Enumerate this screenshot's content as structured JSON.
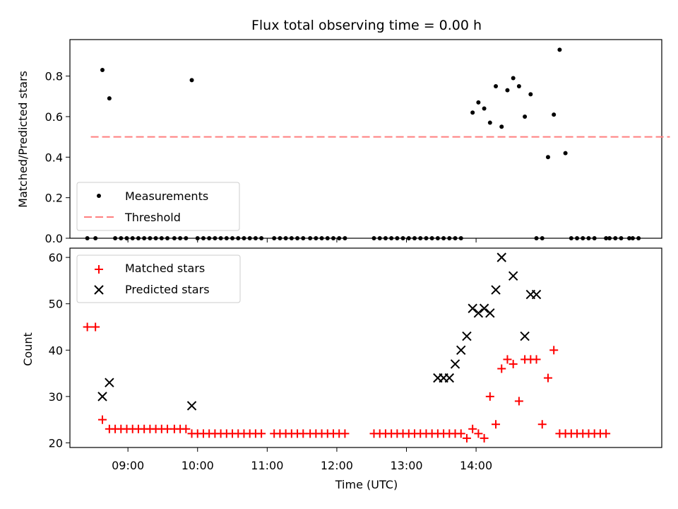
{
  "chart_data": [
    {
      "type": "scatter",
      "title": "Flux total observing time = 0.00 h",
      "xlabel": "",
      "ylabel": "Matched/Predicted stars",
      "ylim": [
        0,
        0.98
      ],
      "yticks": [
        "0.0",
        "0.2",
        "0.4",
        "0.6",
        "0.8"
      ],
      "ytick_values": [
        0,
        0.2,
        0.4,
        0.6,
        0.8
      ],
      "xlim_minutes": [
        490,
        1000
      ],
      "legend": {
        "location": "lower-left",
        "measurements_label": "Measurements",
        "threshold_label": "Threshold"
      },
      "threshold": {
        "value": 0.5,
        "x_start": 508,
        "x_end": 1007,
        "color": "#ff7f7f"
      },
      "measurements_color": "#000000",
      "series": [
        {
          "name": "Measurements",
          "x": [
            505,
            512,
            518,
            524,
            529,
            534,
            539,
            544,
            549,
            554,
            559,
            564,
            569,
            574,
            580,
            585,
            590,
            595,
            600,
            605,
            610,
            615,
            620,
            625,
            630,
            635,
            640,
            645,
            650,
            655,
            666,
            671,
            676,
            681,
            686,
            691,
            697,
            702,
            707,
            712,
            717,
            722,
            727,
            752,
            757,
            762,
            767,
            772,
            777,
            782,
            787,
            792,
            797,
            802,
            807,
            812,
            817,
            822,
            827,
            837,
            842,
            847,
            852,
            857,
            862,
            867,
            872,
            877,
            882,
            887,
            892,
            897,
            902,
            907,
            912,
            917,
            922,
            927,
            932,
            937,
            942,
            952,
            955,
            960,
            965,
            972,
            975,
            980
          ],
          "y": [
            0,
            0,
            0.83,
            0.69,
            0,
            0,
            0,
            0,
            0,
            0,
            0,
            0,
            0,
            0,
            0,
            0,
            0,
            0.78,
            0,
            0,
            0,
            0,
            0,
            0,
            0,
            0,
            0,
            0,
            0,
            0,
            0,
            0,
            0,
            0,
            0,
            0,
            0,
            0,
            0,
            0,
            0,
            0,
            0,
            0,
            0,
            0,
            0,
            0,
            0,
            0,
            0,
            0,
            0,
            0,
            0,
            0,
            0,
            0,
            0,
            0.62,
            0.67,
            0.64,
            0.57,
            0.75,
            0.55,
            0.73,
            0.79,
            0.75,
            0.6,
            0.71,
            0,
            0,
            0.4,
            0.61,
            0.93,
            0.42,
            0,
            0,
            0,
            0,
            0,
            0,
            0,
            0,
            0,
            0,
            0,
            0
          ]
        }
      ]
    },
    {
      "type": "scatter",
      "title": "",
      "xlabel": "Time (UTC)",
      "ylabel": "Count",
      "ylim": [
        19,
        62
      ],
      "yticks": [
        "20",
        "30",
        "40",
        "50",
        "60"
      ],
      "ytick_values": [
        20,
        30,
        40,
        50,
        60
      ],
      "xticks": [
        "09:00",
        "10:00",
        "11:00",
        "12:00",
        "13:00",
        "14:00"
      ],
      "xtick_minutes": [
        540,
        600,
        660,
        720,
        780,
        840
      ],
      "xlim_minutes": [
        490,
        1000
      ],
      "legend": {
        "location": "upper-left",
        "matched_label": "Matched stars",
        "predicted_label": "Predicted stars"
      },
      "matched_color": "#ff0000",
      "predicted_color": "#000000",
      "series": [
        {
          "name": "Matched stars",
          "x": [
            505,
            512,
            518,
            524,
            529,
            534,
            539,
            544,
            549,
            554,
            559,
            564,
            569,
            574,
            580,
            585,
            590,
            595,
            600,
            605,
            610,
            615,
            620,
            625,
            630,
            635,
            640,
            645,
            650,
            655,
            666,
            671,
            676,
            681,
            686,
            691,
            697,
            702,
            707,
            712,
            717,
            722,
            727,
            752,
            757,
            762,
            767,
            772,
            777,
            782,
            787,
            792,
            797,
            802,
            807,
            812,
            817,
            822,
            827,
            832,
            837,
            842,
            847,
            852,
            857,
            862,
            867,
            872,
            877,
            882,
            887,
            892,
            897,
            902,
            907,
            912,
            917,
            922,
            927,
            932,
            937,
            942,
            947,
            952
          ],
          "y": [
            45,
            45,
            25,
            23,
            23,
            23,
            23,
            23,
            23,
            23,
            23,
            23,
            23,
            23,
            23,
            23,
            23,
            22,
            22,
            22,
            22,
            22,
            22,
            22,
            22,
            22,
            22,
            22,
            22,
            22,
            22,
            22,
            22,
            22,
            22,
            22,
            22,
            22,
            22,
            22,
            22,
            22,
            22,
            22,
            22,
            22,
            22,
            22,
            22,
            22,
            22,
            22,
            22,
            22,
            22,
            22,
            22,
            22,
            22,
            21,
            23,
            22,
            21,
            30,
            24,
            36,
            38,
            37,
            29,
            38,
            38,
            38,
            24,
            34,
            40,
            22,
            22,
            22,
            22,
            22,
            22,
            22,
            22,
            22
          ]
        },
        {
          "name": "Predicted stars",
          "x": [
            518,
            524,
            595,
            807,
            812,
            817,
            822,
            827,
            832,
            837,
            842,
            847,
            852,
            857,
            862,
            872,
            882,
            887,
            892
          ],
          "y": [
            30,
            33,
            28,
            34,
            34,
            34,
            37,
            40,
            43,
            49,
            48,
            49,
            48,
            53,
            60,
            56,
            43,
            52,
            52
          ]
        }
      ]
    }
  ]
}
